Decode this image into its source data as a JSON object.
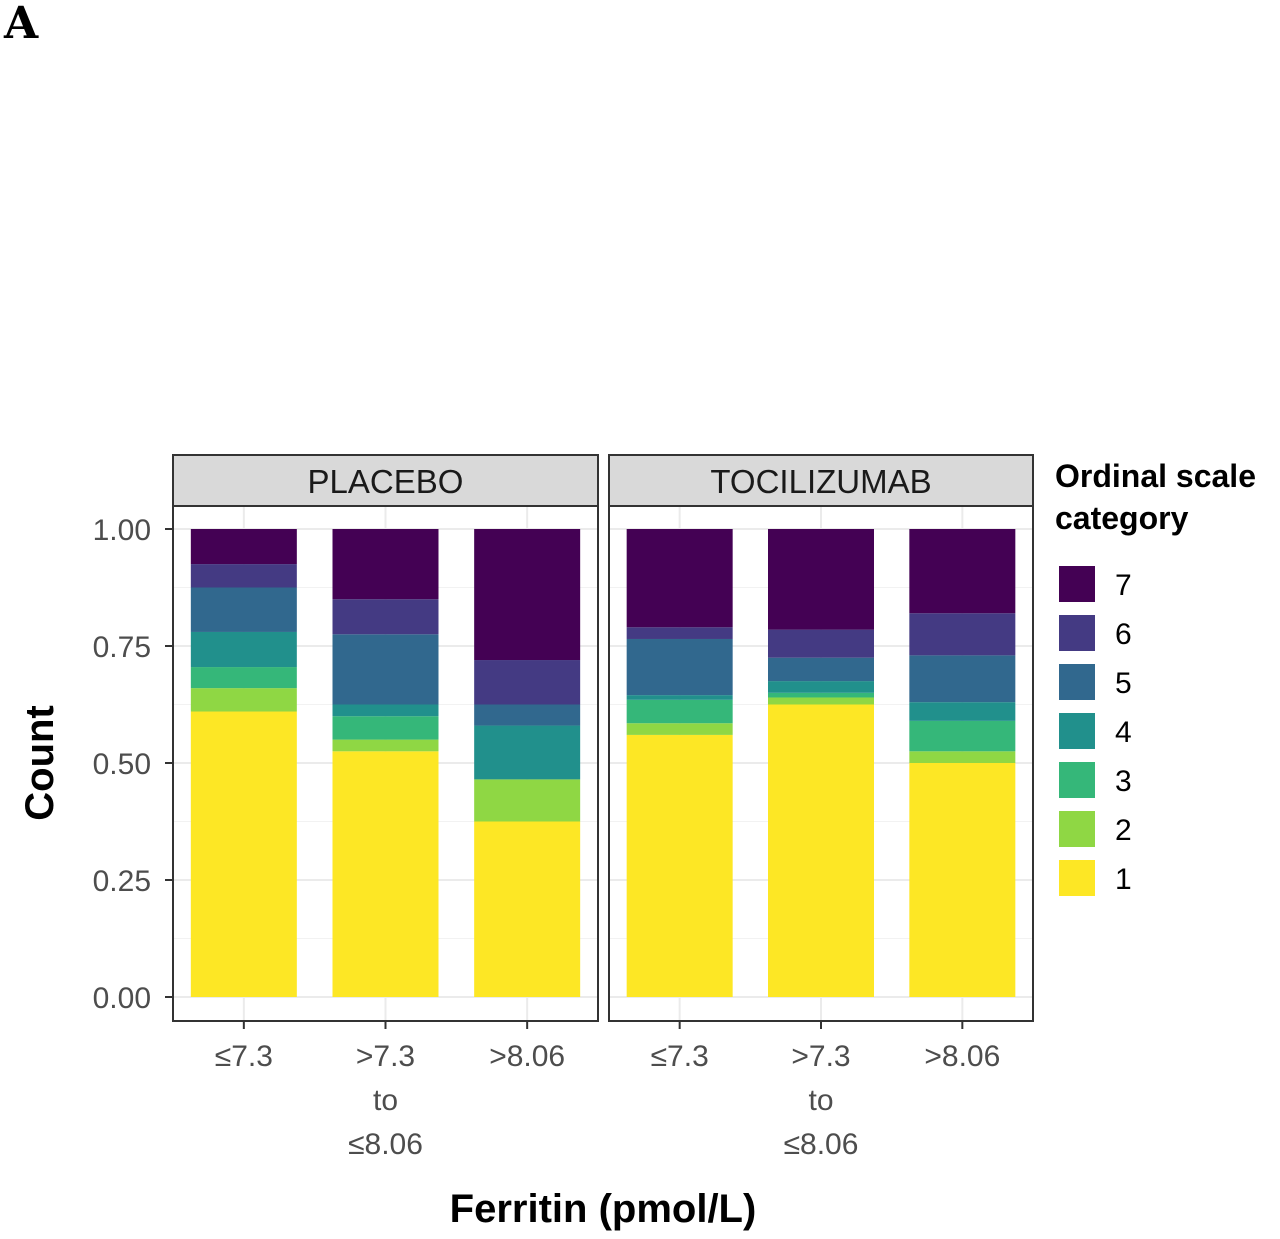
{
  "figure": {
    "panel_label": "A"
  },
  "chart_data": {
    "type": "bar",
    "stacked": true,
    "position": "fill",
    "xlabel": "Ferritin (pmol/L)",
    "ylabel": "Count",
    "ylim": [
      0,
      1
    ],
    "yticks": [
      "0.00",
      "0.25",
      "0.50",
      "0.75",
      "1.00"
    ],
    "ytick_values": [
      0,
      0.25,
      0.5,
      0.75,
      1.0
    ],
    "grid": true,
    "legend": {
      "title": [
        "Ordinal scale",
        "category"
      ],
      "position": "right",
      "entries": [
        "7",
        "6",
        "5",
        "4",
        "3",
        "2",
        "1"
      ]
    },
    "categories": [
      {
        "lines": [
          "≤7.3"
        ]
      },
      {
        "lines": [
          ">7.3",
          "to",
          "≤8.06"
        ]
      },
      {
        "lines": [
          ">8.06"
        ]
      }
    ],
    "category_colors": {
      "1": "#FDE725",
      "2": "#8FD744",
      "3": "#35B779",
      "4": "#21908C",
      "5": "#31688E",
      "6": "#443A83",
      "7": "#440154"
    },
    "facets": [
      {
        "label": "PLACEBO",
        "bars": [
          {
            "category": "≤7.3",
            "proportions": {
              "1": 0.61,
              "2": 0.05,
              "3": 0.045,
              "4": 0.075,
              "5": 0.095,
              "6": 0.05,
              "7": 0.075
            }
          },
          {
            "category": ">7.3 to ≤8.06",
            "proportions": {
              "1": 0.525,
              "2": 0.025,
              "3": 0.05,
              "4": 0.025,
              "5": 0.15,
              "6": 0.075,
              "7": 0.15
            }
          },
          {
            "category": ">8.06",
            "proportions": {
              "1": 0.375,
              "2": 0.09,
              "3": 0.0,
              "4": 0.115,
              "5": 0.045,
              "6": 0.095,
              "7": 0.28
            }
          }
        ]
      },
      {
        "label": "TOCILIZUMAB",
        "bars": [
          {
            "category": "≤7.3",
            "proportions": {
              "1": 0.56,
              "2": 0.025,
              "3": 0.05,
              "4": 0.01,
              "5": 0.12,
              "6": 0.025,
              "7": 0.21
            }
          },
          {
            "category": ">7.3 to ≤8.06",
            "proportions": {
              "1": 0.625,
              "2": 0.015,
              "3": 0.01,
              "4": 0.025,
              "5": 0.05,
              "6": 0.06,
              "7": 0.215
            }
          },
          {
            "category": ">8.06",
            "proportions": {
              "1": 0.5,
              "2": 0.025,
              "3": 0.065,
              "4": 0.04,
              "5": 0.1,
              "6": 0.09,
              "7": 0.18
            }
          }
        ]
      }
    ]
  }
}
